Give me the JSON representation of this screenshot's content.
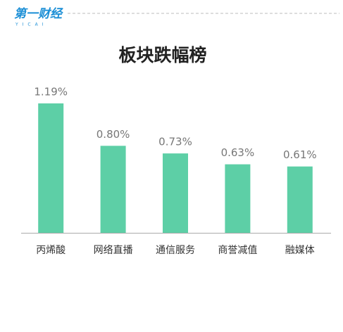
{
  "logo": {
    "text": "第一财经",
    "sub": "YICAI"
  },
  "chart_data": {
    "type": "bar",
    "title": "板块跌幅榜",
    "categories": [
      "丙烯酸",
      "网络直播",
      "通信服务",
      "商誉减值",
      "融媒体"
    ],
    "values": [
      1.19,
      0.8,
      0.73,
      0.63,
      0.61
    ],
    "value_labels": [
      "1.19%",
      "0.80%",
      "0.73%",
      "0.63%",
      "0.61%"
    ],
    "color": "#5dcfa6"
  }
}
